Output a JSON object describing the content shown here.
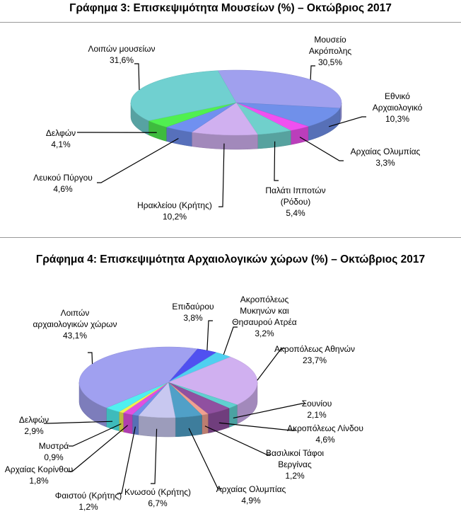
{
  "chart_data": [
    {
      "type": "pie",
      "title": "Γράφημα 3: Επισκεψιμότητα Μουσείων (%) – Οκτώβριος  2017",
      "three_d": true,
      "slices": [
        {
          "label": [
            "Μουσείο",
            "Ακρόπολης"
          ],
          "value": 30.5,
          "value_label": "30,5%",
          "color": "#a0a0ee"
        },
        {
          "label": [
            "Εθνικό",
            "Αρχαιολογικό"
          ],
          "value": 10.3,
          "value_label": "10,3%",
          "color": "#7090ea"
        },
        {
          "label": [
            "Αρχαίας Ολυμπίας"
          ],
          "value": 3.3,
          "value_label": "3,3%",
          "color": "#f050f0"
        },
        {
          "label": [
            "Παλάτι Ιπποτών",
            "(Ρόδου)"
          ],
          "value": 5.4,
          "value_label": "5,4%",
          "color": "#70d0cc"
        },
        {
          "label": [
            "Ηρακλείου (Κρήτης)"
          ],
          "value": 10.2,
          "value_label": "10,2%",
          "color": "#d0b0f0"
        },
        {
          "label": [
            "Λευκού Πύργου"
          ],
          "value": 4.6,
          "value_label": "4,6%",
          "color": "#7090f0"
        },
        {
          "label": [
            "Δελφών"
          ],
          "value": 4.1,
          "value_label": "4,1%",
          "color": "#50f050"
        },
        {
          "label": [
            "Λοιπών μουσείων"
          ],
          "value": 31.6,
          "value_label": "31,6%",
          "color": "#70d0d0"
        }
      ]
    },
    {
      "type": "pie",
      "title": "Γράφημα 4: Επισκεψιμότητα Αρχαιολογικών χώρων (%) – Οκτώβριος 2017",
      "three_d": true,
      "slices": [
        {
          "label": [
            "Επιδαύρου"
          ],
          "value": 3.8,
          "value_label": "3,8%",
          "color": "#5050f0"
        },
        {
          "label": [
            "Ακροπόλεως",
            "Μυκηνών και",
            "Θησαυρού Ατρέα"
          ],
          "value": 3.2,
          "value_label": "3,2%",
          "color": "#50d0f0"
        },
        {
          "label": [
            "Ακροπόλεως Αθηνών"
          ],
          "value": 23.7,
          "value_label": "23,7%",
          "color": "#d0b0f0"
        },
        {
          "label": [
            "Σουνίου"
          ],
          "value": 2.1,
          "value_label": "2,1%",
          "color": "#60d0d0"
        },
        {
          "label": [
            "Ακροπόλεως Λίνδου"
          ],
          "value": 4.6,
          "value_label": "4,6%",
          "color": "#9050a0"
        },
        {
          "label": [
            "Βασιλικοί Τάφοι",
            "Βεργίνας"
          ],
          "value": 1.2,
          "value_label": "1,2%",
          "color": "#f0a090"
        },
        {
          "label": [
            "Αρχαίας Ολυμπίας"
          ],
          "value": 4.9,
          "value_label": "4,9%",
          "color": "#50a0c8"
        },
        {
          "label": [
            "Κνωσού (Κρήτης)"
          ],
          "value": 6.7,
          "value_label": "6,7%",
          "color": "#c8c8f0"
        },
        {
          "label": [
            "Φαιστού (Κρήτης)"
          ],
          "value": 1.2,
          "value_label": "1,2%",
          "color": "#7090e8"
        },
        {
          "label": [
            "Αρχαίας Κορίνθου"
          ],
          "value": 1.8,
          "value_label": "1,8%",
          "color": "#e050e0"
        },
        {
          "label": [
            "Μυστρά"
          ],
          "value": 0.9,
          "value_label": "0,9%",
          "color": "#f0f050"
        },
        {
          "label": [
            "Δελφών"
          ],
          "value": 2.9,
          "value_label": "2,9%",
          "color": "#50f0f0"
        },
        {
          "label": [
            "Λοιπών",
            "αρχαιολογικών χώρων"
          ],
          "value": 43.1,
          "value_label": "43,1%",
          "color": "#a0a0f0"
        }
      ]
    }
  ]
}
